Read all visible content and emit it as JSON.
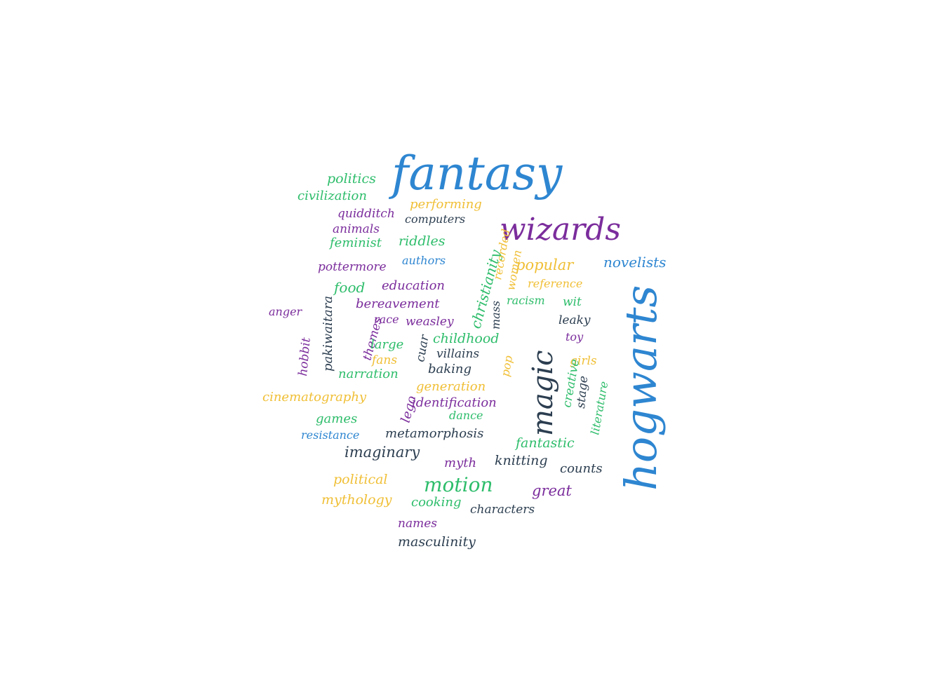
{
  "palette": {
    "blue": "#2e86d1",
    "purple": "#7b2d9c",
    "green": "#2ebd6b",
    "yellow": "#f0bf36",
    "navy": "#2c3e50"
  },
  "words": [
    {
      "text": "fantasy",
      "color": "blue"
    },
    {
      "text": "hogwarts",
      "color": "blue"
    },
    {
      "text": "wizards",
      "color": "purple"
    },
    {
      "text": "magic",
      "color": "navy"
    },
    {
      "text": "motion",
      "color": "green"
    },
    {
      "text": "politics",
      "color": "green"
    },
    {
      "text": "civilization",
      "color": "green"
    },
    {
      "text": "performing",
      "color": "yellow"
    },
    {
      "text": "quidditch",
      "color": "purple"
    },
    {
      "text": "computers",
      "color": "navy"
    },
    {
      "text": "animals",
      "color": "purple"
    },
    {
      "text": "feminist",
      "color": "green"
    },
    {
      "text": "riddles",
      "color": "green"
    },
    {
      "text": "christianity",
      "color": "green"
    },
    {
      "text": "recorded",
      "color": "yellow"
    },
    {
      "text": "women",
      "color": "yellow"
    },
    {
      "text": "popular",
      "color": "yellow"
    },
    {
      "text": "novelists",
      "color": "blue"
    },
    {
      "text": "pottermore",
      "color": "purple"
    },
    {
      "text": "authors",
      "color": "blue"
    },
    {
      "text": "food",
      "color": "green"
    },
    {
      "text": "education",
      "color": "purple"
    },
    {
      "text": "reference",
      "color": "yellow"
    },
    {
      "text": "pakiwaitara",
      "color": "navy"
    },
    {
      "text": "bereavement",
      "color": "purple"
    },
    {
      "text": "mass",
      "color": "navy"
    },
    {
      "text": "racism",
      "color": "green"
    },
    {
      "text": "wit",
      "color": "green"
    },
    {
      "text": "anger",
      "color": "purple"
    },
    {
      "text": "race",
      "color": "purple"
    },
    {
      "text": "weasley",
      "color": "purple"
    },
    {
      "text": "leaky",
      "color": "navy"
    },
    {
      "text": "themes",
      "color": "purple"
    },
    {
      "text": "childhood",
      "color": "green"
    },
    {
      "text": "toy",
      "color": "purple"
    },
    {
      "text": "hobbit",
      "color": "purple"
    },
    {
      "text": "large",
      "color": "green"
    },
    {
      "text": "cuar",
      "color": "navy"
    },
    {
      "text": "villains",
      "color": "navy"
    },
    {
      "text": "fans",
      "color": "yellow"
    },
    {
      "text": "pop",
      "color": "yellow"
    },
    {
      "text": "girls",
      "color": "yellow"
    },
    {
      "text": "baking",
      "color": "navy"
    },
    {
      "text": "creative",
      "color": "green"
    },
    {
      "text": "narration",
      "color": "green"
    },
    {
      "text": "stage",
      "color": "navy"
    },
    {
      "text": "literature",
      "color": "green"
    },
    {
      "text": "generation",
      "color": "yellow"
    },
    {
      "text": "lego",
      "color": "purple"
    },
    {
      "text": "cinematography",
      "color": "yellow"
    },
    {
      "text": "identification",
      "color": "purple"
    },
    {
      "text": "dance",
      "color": "green"
    },
    {
      "text": "games",
      "color": "green"
    },
    {
      "text": "resistance",
      "color": "blue"
    },
    {
      "text": "metamorphosis",
      "color": "navy"
    },
    {
      "text": "fantastic",
      "color": "green"
    },
    {
      "text": "imaginary",
      "color": "navy"
    },
    {
      "text": "myth",
      "color": "purple"
    },
    {
      "text": "knitting",
      "color": "navy"
    },
    {
      "text": "counts",
      "color": "navy"
    },
    {
      "text": "political",
      "color": "yellow"
    },
    {
      "text": "great",
      "color": "purple"
    },
    {
      "text": "mythology",
      "color": "yellow"
    },
    {
      "text": "cooking",
      "color": "green"
    },
    {
      "text": "characters",
      "color": "navy"
    },
    {
      "text": "names",
      "color": "purple"
    },
    {
      "text": "masculinity",
      "color": "navy"
    }
  ]
}
